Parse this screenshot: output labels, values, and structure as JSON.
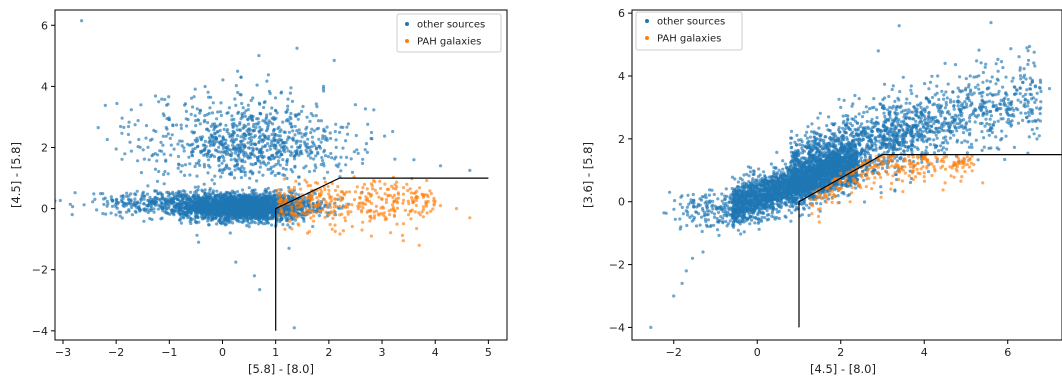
{
  "chart_data": [
    {
      "type": "scatter",
      "xlabel": "[5.8] - [8.0]",
      "ylabel": "[4.5] - [5.8]",
      "xlim": [
        -3.15,
        5.35
      ],
      "ylim": [
        -4.3,
        6.5
      ],
      "xticks": [
        -3,
        -2,
        -1,
        0,
        1,
        2,
        3,
        4,
        5
      ],
      "yticks": [
        -4,
        -2,
        0,
        2,
        4,
        6
      ],
      "legend_position": "upper right",
      "series": [
        {
          "name": "other sources",
          "color": "#1f77b4",
          "description": "dense cloud centred near (0.5, 0.0); spread up to [4.5]-[5.8]≈4.5",
          "values": [
            [
              -2.65,
              6.15
            ],
            [
              1.4,
              5.25
            ],
            [
              2.1,
              4.85
            ],
            [
              0.35,
              4.3
            ],
            [
              -1.2,
              3.5
            ],
            [
              1.9,
              4.0
            ],
            [
              2.5,
              3.4
            ],
            [
              -2.0,
              1.95
            ],
            [
              3.6,
              1.6
            ],
            [
              4.1,
              1.4
            ],
            [
              4.65,
              1.25
            ],
            [
              -0.3,
              2.6
            ],
            [
              0.9,
              3.1
            ],
            [
              -2.4,
              0.3
            ],
            [
              -0.45,
              -1.1
            ],
            [
              0.25,
              -1.75
            ],
            [
              0.6,
              -2.2
            ],
            [
              0.7,
              -2.65
            ],
            [
              1.35,
              -3.9
            ],
            [
              1.25,
              -1.3
            ]
          ]
        },
        {
          "name": "PAH galaxies",
          "color": "#ff7f0e",
          "description": "cluster below/right of the selection line, [5.8]-[8.0] between 1 and 4.7",
          "values": [
            [
              1.1,
              0.3
            ],
            [
              1.5,
              0.45
            ],
            [
              2.0,
              0.6
            ],
            [
              2.5,
              0.55
            ],
            [
              3.0,
              0.3
            ],
            [
              2.3,
              -0.3
            ],
            [
              3.5,
              -0.2
            ],
            [
              3.65,
              -0.65
            ],
            [
              4.1,
              0.1
            ],
            [
              4.65,
              -0.3
            ],
            [
              1.6,
              -0.8
            ],
            [
              2.8,
              -0.9
            ],
            [
              3.4,
              -1.05
            ],
            [
              3.7,
              -1.2
            ],
            [
              4.4,
              0.0
            ]
          ]
        }
      ],
      "selection_line": {
        "x": [
          1.0,
          1.0,
          2.2,
          5.0
        ],
        "y": [
          -4.0,
          0.0,
          1.0,
          1.0
        ]
      }
    },
    {
      "type": "scatter",
      "xlabel": "[4.5] - [8.0]",
      "ylabel": "[3.6] - [5.8]",
      "xlim": [
        -3.0,
        7.3
      ],
      "ylim": [
        -4.4,
        6.1
      ],
      "xticks": [
        -2,
        0,
        2,
        4,
        6
      ],
      "yticks": [
        -4,
        -2,
        0,
        2,
        4,
        6
      ],
      "legend_position": "upper left",
      "series": [
        {
          "name": "other sources",
          "color": "#1f77b4",
          "description": "elongated cloud rising from (-2.5,-4) toward (7,3.5)",
          "values": [
            [
              -2.55,
              -4.0
            ],
            [
              -2.0,
              -3.0
            ],
            [
              -1.8,
              -2.6
            ],
            [
              -1.7,
              -2.2
            ],
            [
              -1.3,
              -1.6
            ],
            [
              -1.55,
              -1.8
            ],
            [
              5.6,
              5.7
            ],
            [
              3.4,
              5.6
            ],
            [
              4.5,
              4.4
            ],
            [
              5.1,
              4.0
            ],
            [
              6.5,
              4.5
            ],
            [
              7.0,
              3.6
            ],
            [
              6.7,
              2.0
            ],
            [
              2.0,
              3.0
            ],
            [
              2.9,
              4.8
            ],
            [
              -2.1,
              0.3
            ]
          ]
        },
        {
          "name": "PAH galaxies",
          "color": "#ff7f0e",
          "description": "band just below the flat part of the selection line",
          "values": [
            [
              1.5,
              0.4
            ],
            [
              2.0,
              0.9
            ],
            [
              2.5,
              1.1
            ],
            [
              3.0,
              1.2
            ],
            [
              3.5,
              1.0
            ],
            [
              4.0,
              0.8
            ],
            [
              4.5,
              0.6
            ],
            [
              4.9,
              0.8
            ],
            [
              5.4,
              0.6
            ],
            [
              3.2,
              0.4
            ],
            [
              2.8,
              0.6
            ],
            [
              1.3,
              -0.1
            ]
          ]
        }
      ],
      "selection_line": {
        "x": [
          1.0,
          1.0,
          3.0,
          7.3
        ],
        "y": [
          -4.0,
          0.0,
          1.5,
          1.5
        ]
      }
    }
  ]
}
